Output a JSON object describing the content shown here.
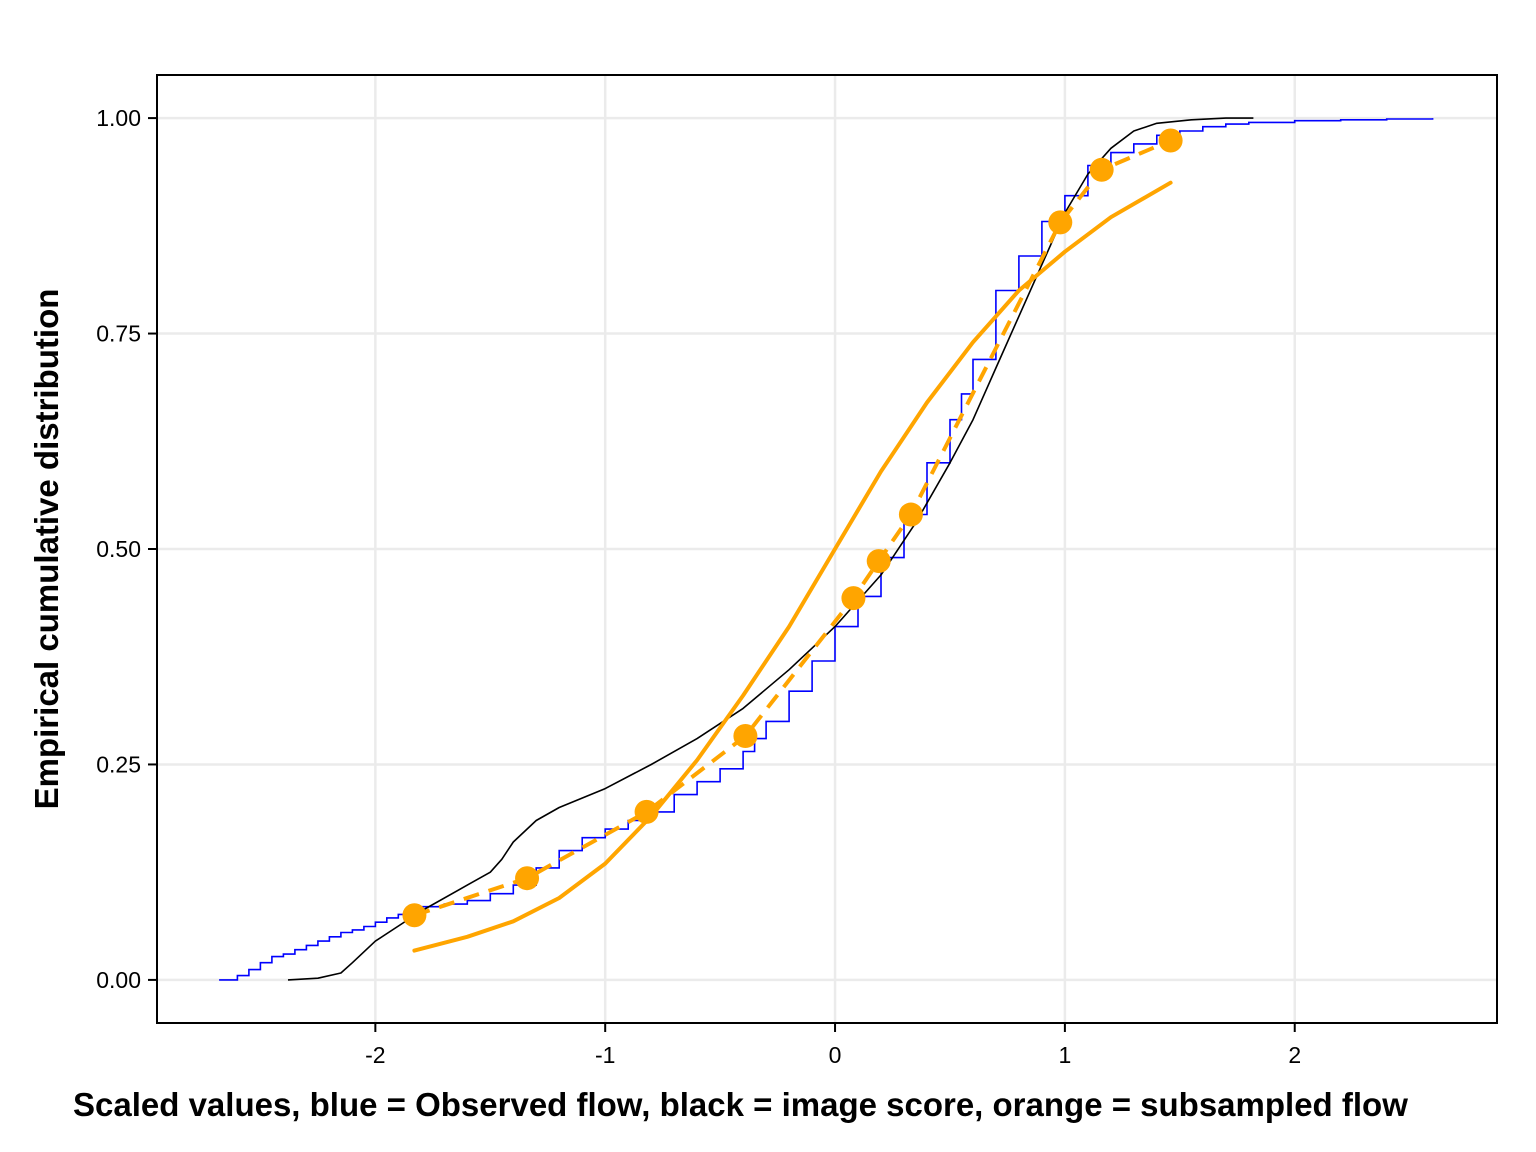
{
  "chart_data": {
    "type": "line",
    "title": "",
    "xlabel": "Scaled values, blue = Observed flow, black = image score, orange = subsampled flow",
    "ylabel": "Empirical cumulative distribution",
    "xlim": [
      -2.95,
      2.88
    ],
    "ylim": [
      -0.05,
      1.05
    ],
    "x_ticks": [
      -2,
      -1,
      0,
      1,
      2
    ],
    "x_tick_labels": [
      "-2",
      "-1",
      "0",
      "1",
      "2"
    ],
    "y_ticks": [
      0,
      0.25,
      0.5,
      0.75,
      1
    ],
    "y_tick_labels": [
      "0.00",
      "0.25",
      "0.50",
      "0.75",
      "1.00"
    ],
    "grid": true,
    "series": [
      {
        "color": "#0000ff",
        "style": "step",
        "x": [
          -2.68,
          -2.6,
          -2.55,
          -2.5,
          -2.45,
          -2.4,
          -2.35,
          -2.3,
          -2.25,
          -2.2,
          -2.15,
          -2.1,
          -2.05,
          -2.0,
          -1.95,
          -1.9,
          -1.85,
          -1.8,
          -1.7,
          -1.6,
          -1.5,
          -1.4,
          -1.3,
          -1.2,
          -1.1,
          -1.0,
          -0.9,
          -0.8,
          -0.7,
          -0.6,
          -0.5,
          -0.4,
          -0.35,
          -0.3,
          -0.2,
          -0.1,
          0.0,
          0.1,
          0.2,
          0.3,
          0.4,
          0.5,
          0.55,
          0.6,
          0.7,
          0.8,
          0.9,
          1.0,
          1.1,
          1.2,
          1.3,
          1.4,
          1.5,
          1.6,
          1.7,
          1.8,
          2.0,
          2.2,
          2.4,
          2.6
        ],
        "y": [
          0.0,
          0.005,
          0.012,
          0.02,
          0.027,
          0.03,
          0.035,
          0.04,
          0.045,
          0.05,
          0.055,
          0.058,
          0.062,
          0.067,
          0.072,
          0.076,
          0.08,
          0.085,
          0.088,
          0.092,
          0.1,
          0.11,
          0.13,
          0.15,
          0.165,
          0.175,
          0.185,
          0.195,
          0.215,
          0.23,
          0.245,
          0.265,
          0.28,
          0.3,
          0.335,
          0.37,
          0.41,
          0.445,
          0.49,
          0.54,
          0.6,
          0.65,
          0.68,
          0.72,
          0.8,
          0.84,
          0.88,
          0.91,
          0.945,
          0.96,
          0.97,
          0.98,
          0.985,
          0.99,
          0.993,
          0.995,
          0.997,
          0.998,
          0.999,
          1.0
        ]
      },
      {
        "color": "#000000",
        "style": "solid",
        "x": [
          -2.38,
          -2.25,
          -2.15,
          -2.1,
          -2.0,
          -1.8,
          -1.6,
          -1.5,
          -1.45,
          -1.4,
          -1.3,
          -1.2,
          -1.0,
          -0.8,
          -0.6,
          -0.4,
          -0.2,
          0.0,
          0.2,
          0.35,
          0.5,
          0.6,
          0.7,
          0.8,
          0.9,
          1.0,
          1.1,
          1.2,
          1.3,
          1.4,
          1.55,
          1.7,
          1.82
        ],
        "y": [
          0.0,
          0.002,
          0.008,
          0.02,
          0.045,
          0.08,
          0.11,
          0.125,
          0.14,
          0.16,
          0.185,
          0.2,
          0.222,
          0.25,
          0.28,
          0.315,
          0.36,
          0.41,
          0.47,
          0.53,
          0.6,
          0.65,
          0.71,
          0.77,
          0.83,
          0.89,
          0.935,
          0.965,
          0.985,
          0.994,
          0.998,
          1.0,
          1.0
        ]
      },
      {
        "color": "#ffa500",
        "style": "points-dashed",
        "x": [
          -1.83,
          -1.34,
          -0.82,
          -0.39,
          0.08,
          0.19,
          0.33,
          0.98,
          1.16,
          1.46
        ],
        "y": [
          0.075,
          0.118,
          0.195,
          0.283,
          0.443,
          0.486,
          0.54,
          0.879,
          0.94,
          0.974
        ]
      },
      {
        "color": "#ffa500",
        "style": "solid-thick",
        "x": [
          -1.83,
          -1.6,
          -1.4,
          -1.2,
          -1.0,
          -0.8,
          -0.6,
          -0.4,
          -0.2,
          0.0,
          0.2,
          0.4,
          0.6,
          0.8,
          1.0,
          1.2,
          1.46
        ],
        "y": [
          0.034,
          0.05,
          0.068,
          0.095,
          0.135,
          0.19,
          0.255,
          0.33,
          0.41,
          0.5,
          0.59,
          0.67,
          0.74,
          0.8,
          0.845,
          0.885,
          0.925
        ]
      }
    ]
  }
}
